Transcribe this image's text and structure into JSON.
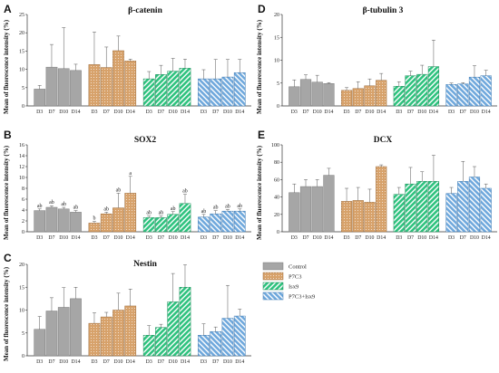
{
  "colors": {
    "Control": "#a6a6a6",
    "P7C3": "#d7a26b",
    "Isx9": "#2ec27e",
    "P7C3+Isx9": "#6fa8dc"
  },
  "chart_data": [
    {
      "type": "bar",
      "panel": "A",
      "title": "β-catenin",
      "ylabel": "Mean of fluorescence intensity (%)",
      "ylim": [
        0,
        25
      ],
      "yticks": [
        0,
        5,
        10,
        15,
        20,
        25
      ],
      "categories": [
        "D3",
        "D7",
        "D10",
        "D14"
      ],
      "series": [
        {
          "name": "Control",
          "values": [
            4.6,
            10.6,
            10.2,
            9.7
          ],
          "errors": [
            1.0,
            6.2,
            11.2,
            1.7
          ]
        },
        {
          "name": "P7C3",
          "values": [
            11.3,
            10.5,
            15.1,
            12.3
          ],
          "errors": [
            8.9,
            5.6,
            4.0,
            0.5
          ]
        },
        {
          "name": "Isx9",
          "values": [
            7.4,
            8.6,
            9.5,
            10.3
          ],
          "errors": [
            2.0,
            2.5,
            3.5,
            2.5
          ]
        },
        {
          "name": "P7C3+Isx9",
          "values": [
            7.4,
            7.4,
            7.9,
            9.1
          ],
          "errors": [
            2.5,
            5.3,
            4.8,
            3.6
          ]
        }
      ],
      "annotations": []
    },
    {
      "type": "bar",
      "panel": "B",
      "title": "SOX2",
      "ylabel": "Mean of fluorescence intensity (%)",
      "ylim": [
        0,
        16
      ],
      "yticks": [
        0,
        2,
        4,
        6,
        8,
        10,
        12,
        14,
        16
      ],
      "categories": [
        "D3",
        "D7",
        "D10",
        "D14"
      ],
      "series": [
        {
          "name": "Control",
          "values": [
            3.9,
            4.5,
            4.2,
            3.6
          ],
          "errors": [
            0.3,
            0.3,
            0.3,
            0.3
          ]
        },
        {
          "name": "P7C3",
          "values": [
            1.6,
            3.3,
            4.4,
            7.1
          ],
          "errors": [
            0.3,
            0.3,
            2.7,
            3.1
          ]
        },
        {
          "name": "Isx9",
          "values": [
            2.6,
            2.6,
            3.2,
            5.2
          ],
          "errors": [
            0.3,
            0.3,
            0.5,
            1.7
          ]
        },
        {
          "name": "P7C3+Isx9",
          "values": [
            2.7,
            3.3,
            3.8,
            3.8
          ],
          "errors": [
            0.5,
            0.6,
            0.3,
            0.4
          ]
        }
      ],
      "annotations": [
        [
          "ab",
          "ab",
          "ab",
          "ab"
        ],
        [
          "b",
          "ab",
          "ab",
          "a"
        ],
        [
          "ab",
          "ab",
          "ab",
          "ab"
        ],
        [
          "ab",
          "ab",
          "ab",
          "ab"
        ]
      ]
    },
    {
      "type": "bar",
      "panel": "C",
      "title": "Nestin",
      "ylabel": "Mean of fluorescence intensity (%)",
      "ylim": [
        0,
        20
      ],
      "yticks": [
        0,
        5,
        10,
        15,
        20
      ],
      "categories": [
        "D3",
        "D7",
        "D10",
        "D14"
      ],
      "series": [
        {
          "name": "Control",
          "values": [
            5.8,
            9.8,
            10.6,
            12.5
          ],
          "errors": [
            2.8,
            2.9,
            4.3,
            2.5
          ]
        },
        {
          "name": "P7C3",
          "values": [
            7.1,
            8.5,
            10.0,
            10.9
          ],
          "errors": [
            2.3,
            1.0,
            3.7,
            3.7
          ]
        },
        {
          "name": "Isx9",
          "values": [
            4.5,
            6.2,
            11.8,
            15.0
          ],
          "errors": [
            2.1,
            0.7,
            6.2,
            4.9
          ]
        },
        {
          "name": "P7C3+Isx9",
          "values": [
            4.5,
            5.3,
            8.2,
            8.7
          ],
          "errors": [
            2.5,
            1.0,
            7.2,
            1.5
          ]
        }
      ],
      "annotations": []
    },
    {
      "type": "bar",
      "panel": "D",
      "title": "β-tubulin 3",
      "ylabel": "Mean of fluorescence intensity (%)",
      "ylim": [
        0,
        20
      ],
      "yticks": [
        0,
        5,
        10,
        15,
        20
      ],
      "categories": [
        "D3",
        "D7",
        "D10",
        "D14"
      ],
      "series": [
        {
          "name": "Control",
          "values": [
            4.2,
            5.8,
            5.2,
            4.9
          ],
          "errors": [
            1.5,
            1.0,
            1.5,
            0.2
          ]
        },
        {
          "name": "P7C3",
          "values": [
            3.4,
            3.8,
            4.4,
            5.6
          ],
          "errors": [
            0.6,
            1.5,
            1.5,
            1.5
          ]
        },
        {
          "name": "Isx9",
          "values": [
            4.3,
            6.6,
            6.9,
            8.6
          ],
          "errors": [
            1.0,
            1.0,
            2.0,
            5.8
          ]
        },
        {
          "name": "P7C3+Isx9",
          "values": [
            4.7,
            4.8,
            6.3,
            6.6
          ],
          "errors": [
            0.3,
            0.3,
            2.5,
            1.2
          ]
        }
      ],
      "annotations": []
    },
    {
      "type": "bar",
      "panel": "E",
      "title": "DCX",
      "ylabel": "Mean of fluorescence intensity (%)",
      "ylim": [
        0,
        100
      ],
      "yticks": [
        0,
        20,
        40,
        60,
        80,
        100
      ],
      "categories": [
        "D3",
        "D7",
        "D10",
        "D14"
      ],
      "series": [
        {
          "name": "Control",
          "values": [
            45,
            52,
            52,
            65
          ],
          "errors": [
            10,
            8,
            8,
            8
          ]
        },
        {
          "name": "P7C3",
          "values": [
            35,
            36,
            34,
            75
          ],
          "errors": [
            15,
            15,
            15,
            2
          ]
        },
        {
          "name": "Isx9",
          "values": [
            43,
            55,
            58,
            58
          ],
          "errors": [
            8,
            19,
            11,
            30
          ]
        },
        {
          "name": "P7C3+Isx9",
          "values": [
            44,
            58,
            63,
            50
          ],
          "errors": [
            7,
            23,
            12,
            5
          ]
        }
      ],
      "annotations": []
    }
  ],
  "legend": {
    "items": [
      "Control",
      "P7C3",
      "Isx9",
      "P7C3+Isx9"
    ]
  }
}
